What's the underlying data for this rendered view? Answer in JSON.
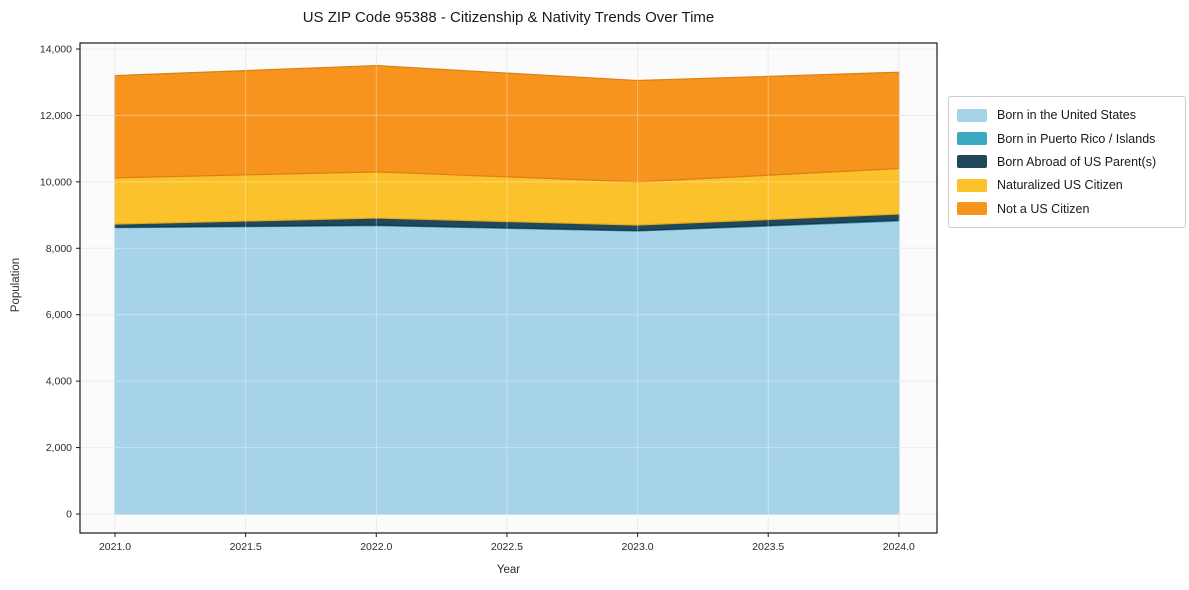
{
  "title": "US ZIP Code 95388 - Citizenship & Nativity Trends Over Time",
  "chart_data": {
    "type": "area",
    "stacked": true,
    "title": "US ZIP Code 95388 - Citizenship & Nativity Trends Over Time",
    "xlabel": "Year",
    "ylabel": "Population",
    "x": [
      2021,
      2022,
      2023,
      2024
    ],
    "series": [
      {
        "name": "Born in the United States",
        "color": "#a6d3e8",
        "edge": "#8fc0da",
        "values": [
          8620,
          8680,
          8520,
          8820
        ]
      },
      {
        "name": "Born in Puerto Rico / Islands",
        "color": "#3ca8c2",
        "edge": "#2e93ab",
        "values": [
          15,
          20,
          15,
          25
        ]
      },
      {
        "name": "Born Abroad of US Parent(s)",
        "color": "#21475a",
        "edge": "#18394a",
        "values": [
          95,
          210,
          165,
          185
        ]
      },
      {
        "name": "Naturalized US Citizen",
        "color": "#fcc22c",
        "edge": "#e2ab1d",
        "values": [
          1390,
          1390,
          1300,
          1370
        ]
      },
      {
        "name": "Not a US Citizen",
        "color": "#f7941e",
        "edge": "#dd7f14",
        "values": [
          3080,
          3200,
          3050,
          2900
        ]
      }
    ],
    "totals": [
      13200,
      13500,
      13050,
      13300
    ],
    "xlim": [
      2020.866,
      2024.146
    ],
    "ylim": [
      -572,
      14180
    ],
    "x_ticks": {
      "values": [
        2021.0,
        2021.5,
        2022.0,
        2022.5,
        2023.0,
        2023.5,
        2024.0
      ],
      "labels": [
        "2021.0",
        "2021.5",
        "2022.0",
        "2022.5",
        "2023.0",
        "2023.5",
        "2024.0"
      ]
    },
    "y_ticks": {
      "values": [
        0,
        2000,
        4000,
        6000,
        8000,
        10000,
        12000,
        14000
      ],
      "labels": [
        "0",
        "2,000",
        "4,000",
        "6,000",
        "8,000",
        "10,000",
        "12,000",
        "14,000"
      ]
    },
    "grid": true,
    "legend_position": "outside-right"
  },
  "colors": {
    "figure_background": "#ffffff",
    "plot_background": "#fbfbfc",
    "gridline": "#e4e4e8",
    "gridline_overlay": "rgba(255,255,255,0.35)",
    "spine": "#1a1a1a",
    "tick_label": "#2b2b2b"
  }
}
